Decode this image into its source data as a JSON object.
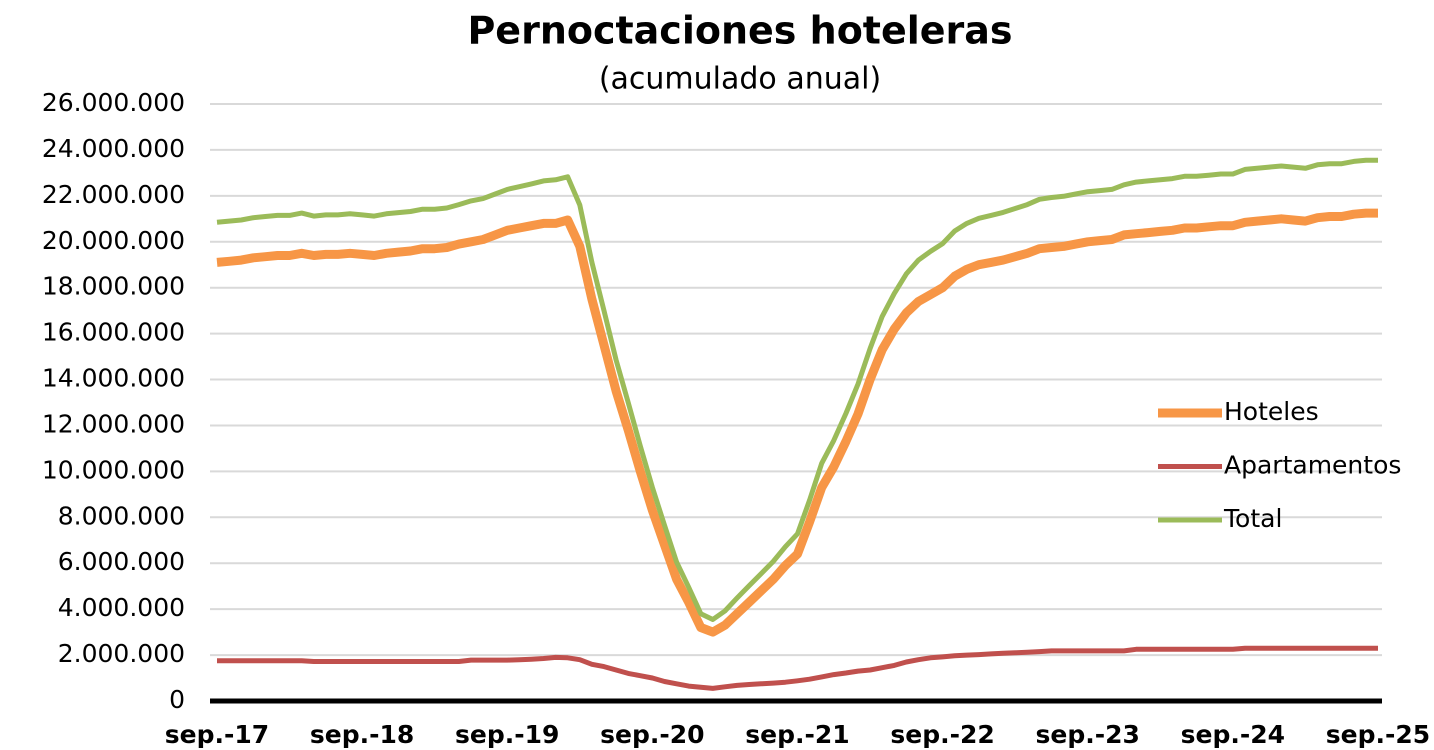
{
  "chart_data": {
    "type": "line",
    "title": "Pernoctaciones hoteleras",
    "subtitle": "(acumulado anual)",
    "categories": [
      "sep.-17",
      null,
      null,
      null,
      null,
      null,
      null,
      null,
      null,
      null,
      null,
      null,
      "sep.-18",
      null,
      null,
      null,
      null,
      null,
      null,
      null,
      null,
      null,
      null,
      null,
      "sep.-19",
      null,
      null,
      null,
      null,
      null,
      null,
      null,
      null,
      null,
      null,
      null,
      "sep.-20",
      null,
      null,
      null,
      null,
      null,
      null,
      null,
      null,
      null,
      null,
      null,
      "sep.-21",
      null,
      null,
      null,
      null,
      null,
      null,
      null,
      null,
      null,
      null,
      null,
      "sep.-22",
      null,
      null,
      null,
      null,
      null,
      null,
      null,
      null,
      null,
      null,
      null,
      "sep.-23",
      null,
      null,
      null,
      null,
      null,
      null,
      null,
      null,
      null,
      null,
      null,
      "sep.-24",
      null,
      null,
      null,
      null,
      null,
      null,
      null,
      null,
      null,
      null,
      null,
      "sep.-25"
    ],
    "series": [
      {
        "name": "Hoteles",
        "color": "#f79646",
        "values": [
          19100000,
          19150000,
          19200000,
          19300000,
          19350000,
          19400000,
          19400000,
          19500000,
          19400000,
          19450000,
          19450000,
          19500000,
          19450000,
          19400000,
          19500000,
          19550000,
          19600000,
          19700000,
          19700000,
          19750000,
          19900000,
          20000000,
          20100000,
          20300000,
          20500000,
          20600000,
          20700000,
          20800000,
          20800000,
          20950000,
          19800000,
          17500000,
          15500000,
          13500000,
          11800000,
          10000000,
          8300000,
          6800000,
          5300000,
          4300000,
          3200000,
          3000000,
          3300000,
          3800000,
          4300000,
          4800000,
          5300000,
          5900000,
          6400000,
          7800000,
          9300000,
          10200000,
          11300000,
          12500000,
          14000000,
          15300000,
          16200000,
          16900000,
          17400000,
          17700000,
          18000000,
          18500000,
          18800000,
          19000000,
          19100000,
          19200000,
          19350000,
          19500000,
          19700000,
          19750000,
          19800000,
          19900000,
          20000000,
          20050000,
          20100000,
          20300000,
          20350000,
          20400000,
          20450000,
          20500000,
          20600000,
          20600000,
          20650000,
          20700000,
          20700000,
          20850000,
          20900000,
          20950000,
          21000000,
          20950000,
          20900000,
          21050000,
          21100000,
          21100000,
          21200000,
          21250000,
          21250000
        ]
      },
      {
        "name": "Apartamentos",
        "color": "#c0504d",
        "values": [
          1750000,
          1750000,
          1750000,
          1750000,
          1750000,
          1750000,
          1750000,
          1750000,
          1720000,
          1720000,
          1720000,
          1720000,
          1720000,
          1720000,
          1720000,
          1720000,
          1720000,
          1720000,
          1720000,
          1720000,
          1720000,
          1780000,
          1780000,
          1780000,
          1780000,
          1800000,
          1820000,
          1850000,
          1900000,
          1880000,
          1800000,
          1600000,
          1500000,
          1350000,
          1200000,
          1100000,
          1000000,
          850000,
          750000,
          650000,
          600000,
          550000,
          620000,
          680000,
          720000,
          750000,
          780000,
          820000,
          880000,
          950000,
          1050000,
          1150000,
          1220000,
          1300000,
          1350000,
          1450000,
          1550000,
          1700000,
          1800000,
          1880000,
          1920000,
          1970000,
          2000000,
          2020000,
          2050000,
          2080000,
          2100000,
          2120000,
          2150000,
          2180000,
          2180000,
          2180000,
          2180000,
          2180000,
          2180000,
          2180000,
          2250000,
          2250000,
          2250000,
          2250000,
          2250000,
          2250000,
          2250000,
          2250000,
          2250000,
          2300000,
          2300000,
          2300000,
          2300000,
          2300000,
          2300000,
          2300000,
          2300000,
          2300000,
          2300000,
          2300000,
          2300000
        ]
      },
      {
        "name": "Total",
        "color": "#9bbb59",
        "values": [
          20850000,
          20900000,
          20950000,
          21050000,
          21100000,
          21150000,
          21150000,
          21250000,
          21120000,
          21170000,
          21170000,
          21220000,
          21170000,
          21120000,
          21220000,
          21270000,
          21320000,
          21420000,
          21420000,
          21470000,
          21620000,
          21780000,
          21880000,
          22080000,
          22280000,
          22400000,
          22520000,
          22650000,
          22700000,
          22830000,
          21600000,
          19100000,
          17000000,
          14850000,
          13000000,
          11100000,
          9300000,
          7650000,
          6050000,
          4950000,
          3800000,
          3550000,
          3920000,
          4480000,
          5020000,
          5550000,
          6080000,
          6720000,
          7280000,
          8750000,
          10350000,
          11350000,
          12520000,
          13800000,
          15350000,
          16750000,
          17750000,
          18600000,
          19200000,
          19580000,
          19920000,
          20470000,
          20800000,
          21020000,
          21150000,
          21280000,
          21450000,
          21620000,
          21850000,
          21930000,
          21980000,
          22080000,
          22180000,
          22230000,
          22280000,
          22480000,
          22600000,
          22650000,
          22700000,
          22750000,
          22850000,
          22850000,
          22900000,
          22950000,
          22950000,
          23150000,
          23200000,
          23250000,
          23300000,
          23250000,
          23200000,
          23350000,
          23400000,
          23400000,
          23500000,
          23550000,
          23550000
        ]
      }
    ],
    "ylim": [
      0,
      26000000
    ],
    "yticks": [
      0,
      {
        "value": 2000000,
        "label": "2.000.000"
      },
      {
        "value": 4000000,
        "label": "4.000.000"
      },
      {
        "value": 6000000,
        "label": "6.000.000"
      },
      {
        "value": 8000000,
        "label": "8.000.000"
      },
      {
        "value": 10000000,
        "label": "10.000.000"
      },
      {
        "value": 12000000,
        "label": "12.000.000"
      },
      {
        "value": 14000000,
        "label": "14.000.000"
      },
      {
        "value": 16000000,
        "label": "16.000.000"
      },
      {
        "value": 18000000,
        "label": "18.000.000"
      },
      {
        "value": 20000000,
        "label": "20.000.000"
      },
      {
        "value": 22000000,
        "label": "22.000.000"
      },
      {
        "value": 24000000,
        "label": "24.000.000"
      },
      {
        "value": 26000000,
        "label": "26.000.000"
      }
    ],
    "grid": true,
    "legend": "right"
  }
}
